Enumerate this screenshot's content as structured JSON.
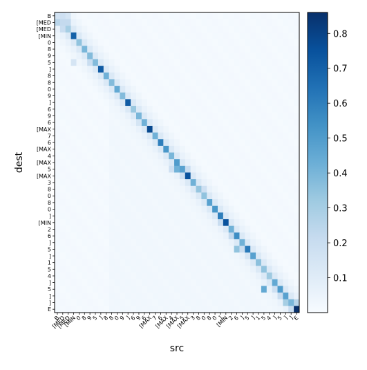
{
  "chart_data": {
    "type": "heatmap",
    "title": "",
    "xlabel": "src",
    "ylabel": "dest",
    "x_ticklabels": [
      "B",
      "[MED",
      "[MED",
      "[MIN",
      "0",
      "8",
      "9",
      "5",
      "]",
      "8",
      "8",
      "0",
      "9",
      "]",
      "6",
      "9",
      "6",
      "[MAX",
      "7",
      "6",
      "[MAX",
      "4",
      "[MAX",
      "5",
      "[MAX",
      "3",
      "8",
      "0",
      "8",
      "0",
      "]",
      "[MIN",
      "2",
      "6",
      "]",
      "5",
      "]",
      "1",
      "5",
      "4",
      "]",
      "5",
      "]",
      "]",
      "E"
    ],
    "y_ticklabels": [
      "B",
      "[MED",
      "[MED",
      "[MIN",
      "0",
      "8",
      "9",
      "5",
      "]",
      "8",
      "8",
      "0",
      "9",
      "]",
      "6",
      "9",
      "6",
      "[MAX",
      "7",
      "6",
      "[MAX",
      "4",
      "[MAX",
      "5",
      "[MAX",
      "3",
      "8",
      "0",
      "8",
      "0",
      "]",
      "[MIN",
      "2",
      "6",
      "]",
      "5",
      "]",
      "1",
      "5",
      "4",
      "]",
      "5",
      "]",
      "]",
      "E"
    ],
    "colormap": "Blues",
    "colorbar": {
      "min": 0.0,
      "max": 0.86,
      "ticks": [
        0.1,
        0.2,
        0.3,
        0.4,
        0.5,
        0.6,
        0.7,
        0.8
      ]
    },
    "colors": {
      "low": "#f7fbff",
      "high": "#08306b"
    },
    "cells": {
      "diagonal": [
        0.16,
        0.22,
        0.3,
        0.7,
        0.35,
        0.4,
        0.38,
        0.38,
        0.72,
        0.42,
        0.38,
        0.45,
        0.38,
        0.72,
        0.33,
        0.4,
        0.42,
        0.78,
        0.42,
        0.6,
        0.52,
        0.4,
        0.5,
        0.48,
        0.75,
        0.42,
        0.34,
        0.35,
        0.48,
        0.52,
        0.6,
        0.75,
        0.42,
        0.55,
        0.42,
        0.62,
        0.48,
        0.36,
        0.35,
        0.32,
        0.45,
        0.5,
        0.48,
        0.4,
        0.86
      ],
      "emphasized": [
        {
          "row": 0,
          "col": 1,
          "value": 0.18
        },
        {
          "row": 0,
          "col": 2,
          "value": 0.15
        },
        {
          "row": 1,
          "col": 0,
          "value": 0.25
        },
        {
          "row": 1,
          "col": 2,
          "value": 0.22
        },
        {
          "row": 2,
          "col": 1,
          "value": 0.2
        },
        {
          "row": 2,
          "col": 3,
          "value": 0.12
        },
        {
          "row": 7,
          "col": 3,
          "value": 0.15
        },
        {
          "row": 7,
          "col": 6,
          "value": 0.2
        },
        {
          "row": 16,
          "col": 15,
          "value": 0.15
        },
        {
          "row": 23,
          "col": 22,
          "value": 0.42
        },
        {
          "row": 23,
          "col": 21,
          "value": 0.18
        },
        {
          "row": 23,
          "col": 24,
          "value": 0.2
        },
        {
          "row": 24,
          "col": 23,
          "value": 0.18
        },
        {
          "row": 26,
          "col": 27,
          "value": 0.18
        },
        {
          "row": 31,
          "col": 30,
          "value": 0.2
        },
        {
          "row": 33,
          "col": 32,
          "value": 0.22
        },
        {
          "row": 35,
          "col": 33,
          "value": 0.35
        },
        {
          "row": 35,
          "col": 34,
          "value": 0.2
        },
        {
          "row": 36,
          "col": 35,
          "value": 0.15
        },
        {
          "row": 41,
          "col": 38,
          "value": 0.45
        },
        {
          "row": 41,
          "col": 40,
          "value": 0.18
        },
        {
          "row": 42,
          "col": 41,
          "value": 0.2
        },
        {
          "row": 43,
          "col": 42,
          "value": 0.3
        },
        {
          "row": 43,
          "col": 44,
          "value": 0.25
        },
        {
          "row": 44,
          "col": 43,
          "value": 0.2
        }
      ]
    }
  }
}
